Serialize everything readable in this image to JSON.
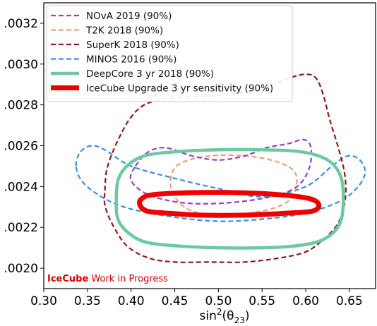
{
  "chart_data": {
    "type": "line",
    "title": "",
    "xlabel": "sin²(θ₂₃)",
    "xlabel_main": "sin",
    "xlabel_sup": "2",
    "xlabel_paren": "(θ",
    "xlabel_sub": "23",
    "xlabel_close": ")",
    "ylabel": "",
    "xlim": [
      0.3,
      0.68
    ],
    "ylim": [
      0.0019,
      0.0033
    ],
    "x_ticks": [
      {
        "value": 0.3,
        "label": "0.30"
      },
      {
        "value": 0.35,
        "label": "0.35"
      },
      {
        "value": 0.4,
        "label": "0.40"
      },
      {
        "value": 0.45,
        "label": "0.45"
      },
      {
        "value": 0.5,
        "label": "0.50"
      },
      {
        "value": 0.55,
        "label": "0.55"
      },
      {
        "value": 0.6,
        "label": "0.60"
      },
      {
        "value": 0.65,
        "label": "0.65"
      }
    ],
    "y_ticks": [
      {
        "value": 0.002,
        "label": ".0020"
      },
      {
        "value": 0.0022,
        "label": ".0022"
      },
      {
        "value": 0.0024,
        "label": ".0024"
      },
      {
        "value": 0.0026,
        "label": ".0026"
      },
      {
        "value": 0.0028,
        "label": ".0028"
      },
      {
        "value": 0.003,
        "label": ".0030"
      },
      {
        "value": 0.0032,
        "label": ".0032"
      }
    ],
    "legend_position": "top-left",
    "series": [
      {
        "name": "NOvA 2019 (90%)",
        "color": "#9b3fc7",
        "style": "dashed",
        "closed": true,
        "points": [
          [
            0.405,
            0.0025
          ],
          [
            0.42,
            0.00257
          ],
          [
            0.44,
            0.00259
          ],
          [
            0.47,
            0.00255
          ],
          [
            0.5,
            0.00253
          ],
          [
            0.53,
            0.00255
          ],
          [
            0.555,
            0.00259
          ],
          [
            0.58,
            0.00261
          ],
          [
            0.598,
            0.00263
          ],
          [
            0.606,
            0.00259
          ],
          [
            0.604,
            0.00249
          ],
          [
            0.59,
            0.0024
          ],
          [
            0.56,
            0.00235
          ],
          [
            0.51,
            0.00232
          ],
          [
            0.46,
            0.00232
          ],
          [
            0.42,
            0.00236
          ],
          [
            0.4,
            0.00243
          ]
        ]
      },
      {
        "name": "T2K 2018 (90%)",
        "color": "#e4a27b",
        "style": "dashed",
        "closed": true,
        "points": [
          [
            0.445,
            0.00243
          ],
          [
            0.455,
            0.00251
          ],
          [
            0.49,
            0.00255
          ],
          [
            0.53,
            0.00255
          ],
          [
            0.56,
            0.00253
          ],
          [
            0.583,
            0.00249
          ],
          [
            0.59,
            0.00243
          ],
          [
            0.583,
            0.00234
          ],
          [
            0.56,
            0.00229
          ],
          [
            0.52,
            0.00226
          ],
          [
            0.49,
            0.00226
          ],
          [
            0.465,
            0.00229
          ],
          [
            0.45,
            0.00235
          ]
        ]
      },
      {
        "name": "SuperK 2018 (90%)",
        "color": "#8b1a1a",
        "style": "dashed",
        "closed": true,
        "points": [
          [
            0.37,
            0.00238
          ],
          [
            0.372,
            0.00248
          ],
          [
            0.38,
            0.00258
          ],
          [
            0.39,
            0.00267
          ],
          [
            0.4,
            0.00274
          ],
          [
            0.415,
            0.0028
          ],
          [
            0.44,
            0.00283
          ],
          [
            0.47,
            0.00284
          ],
          [
            0.51,
            0.00285
          ],
          [
            0.55,
            0.00288
          ],
          [
            0.58,
            0.00293
          ],
          [
            0.6,
            0.00295
          ],
          [
            0.612,
            0.00293
          ],
          [
            0.62,
            0.00285
          ],
          [
            0.628,
            0.00272
          ],
          [
            0.638,
            0.00258
          ],
          [
            0.645,
            0.00245
          ],
          [
            0.645,
            0.00233
          ],
          [
            0.637,
            0.00222
          ],
          [
            0.62,
            0.00214
          ],
          [
            0.6,
            0.00208
          ],
          [
            0.57,
            0.00205
          ],
          [
            0.53,
            0.00203
          ],
          [
            0.49,
            0.00203
          ],
          [
            0.45,
            0.00203
          ],
          [
            0.42,
            0.00205
          ],
          [
            0.395,
            0.00211
          ],
          [
            0.378,
            0.00222
          ],
          [
            0.37,
            0.00231
          ]
        ]
      },
      {
        "name": "MINOS 2016 (90%)",
        "color": "#3c8ee0",
        "style": "dashed",
        "closed": true,
        "points": [
          [
            0.337,
            0.0025
          ],
          [
            0.342,
            0.00257
          ],
          [
            0.355,
            0.0026
          ],
          [
            0.37,
            0.00258
          ],
          [
            0.4,
            0.0025
          ],
          [
            0.45,
            0.00244
          ],
          [
            0.5,
            0.00239
          ],
          [
            0.55,
            0.00235
          ],
          [
            0.6,
            0.0024
          ],
          [
            0.63,
            0.0025
          ],
          [
            0.648,
            0.00255
          ],
          [
            0.662,
            0.00253
          ],
          [
            0.668,
            0.00247
          ],
          [
            0.66,
            0.0024
          ],
          [
            0.64,
            0.00233
          ],
          [
            0.6,
            0.00227
          ],
          [
            0.55,
            0.00224
          ],
          [
            0.5,
            0.00223
          ],
          [
            0.45,
            0.00225
          ],
          [
            0.4,
            0.00229
          ],
          [
            0.37,
            0.00234
          ],
          [
            0.345,
            0.00242
          ]
        ]
      },
      {
        "name": "DeepCore 3 yr 2018 (90%)",
        "color": "#6cc9a1",
        "style": "solid",
        "closed": true,
        "points": [
          [
            0.383,
            0.00232
          ],
          [
            0.385,
            0.00243
          ],
          [
            0.395,
            0.0025
          ],
          [
            0.415,
            0.00255
          ],
          [
            0.45,
            0.00257
          ],
          [
            0.5,
            0.00258
          ],
          [
            0.55,
            0.00258
          ],
          [
            0.595,
            0.00257
          ],
          [
            0.625,
            0.00253
          ],
          [
            0.64,
            0.00245
          ],
          [
            0.643,
            0.00232
          ],
          [
            0.638,
            0.00221
          ],
          [
            0.62,
            0.00214
          ],
          [
            0.59,
            0.00211
          ],
          [
            0.55,
            0.0021
          ],
          [
            0.5,
            0.0021
          ],
          [
            0.45,
            0.00211
          ],
          [
            0.415,
            0.00213
          ],
          [
            0.395,
            0.00218
          ],
          [
            0.385,
            0.00224
          ]
        ]
      },
      {
        "name": "IceCube Upgrade 3 yr sensitivity (90%)",
        "color": "#ee0000",
        "style": "solid",
        "closed": true,
        "points": [
          [
            0.41,
            0.00231
          ],
          [
            0.412,
            0.00234
          ],
          [
            0.425,
            0.00236
          ],
          [
            0.47,
            0.00237
          ],
          [
            0.52,
            0.00237
          ],
          [
            0.57,
            0.00236
          ],
          [
            0.605,
            0.00234
          ],
          [
            0.615,
            0.00231
          ],
          [
            0.608,
            0.00228
          ],
          [
            0.58,
            0.00227
          ],
          [
            0.53,
            0.00226
          ],
          [
            0.48,
            0.00226
          ],
          [
            0.44,
            0.00227
          ],
          [
            0.418,
            0.00228
          ]
        ]
      }
    ]
  },
  "annotation": {
    "brand": "IceCube",
    "text": " Work in Progress",
    "brand_color": "#d40000",
    "text_color": "#d40000"
  }
}
